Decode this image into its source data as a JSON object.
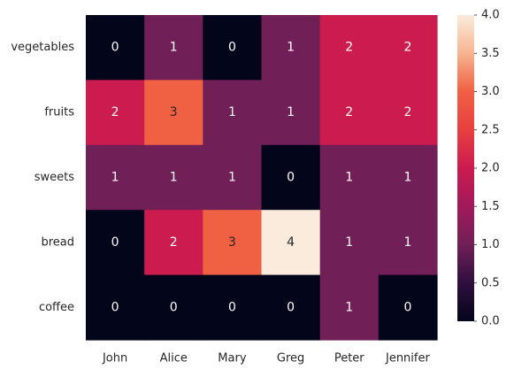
{
  "chart_data": {
    "type": "heatmap",
    "title": "",
    "xlabel": "",
    "ylabel": "",
    "x_categories": [
      "John",
      "Alice",
      "Mary",
      "Greg",
      "Peter",
      "Jennifer"
    ],
    "y_categories": [
      "vegetables",
      "fruits",
      "sweets",
      "bread",
      "coffee"
    ],
    "values": [
      [
        0,
        1,
        0,
        1,
        2,
        2
      ],
      [
        2,
        3,
        1,
        1,
        2,
        2
      ],
      [
        1,
        1,
        1,
        0,
        1,
        1
      ],
      [
        0,
        2,
        3,
        4,
        1,
        1
      ],
      [
        0,
        0,
        0,
        0,
        1,
        0
      ]
    ],
    "annotate": true,
    "colormap": "rocket",
    "vmin": 0,
    "vmax": 4,
    "colorbar": {
      "ticks": [
        0.0,
        0.5,
        1.0,
        1.5,
        2.0,
        2.5,
        3.0,
        3.5,
        4.0
      ],
      "tick_labels": [
        "0.0",
        "0.5",
        "1.0",
        "1.5",
        "2.0",
        "2.5",
        "3.0",
        "3.5",
        "4.0"
      ],
      "placement": "right"
    },
    "colors": {
      "0": "#03051a",
      "1": "#701f57",
      "2": "#cb1b4f",
      "3": "#f06043",
      "4": "#faebdd"
    },
    "grid": false
  }
}
